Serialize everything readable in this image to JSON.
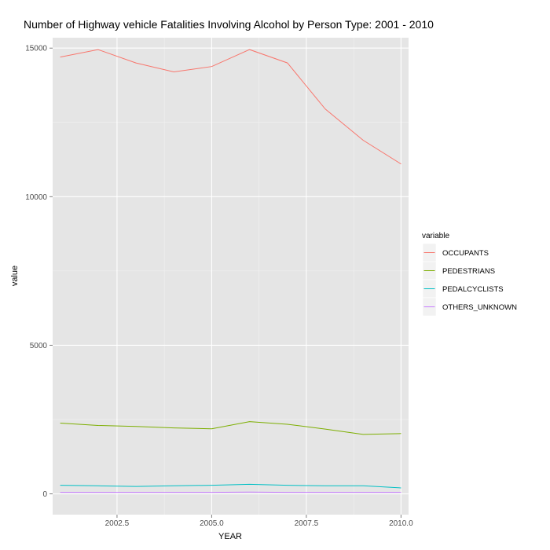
{
  "chart_data": {
    "type": "line",
    "title": "Number of Highway vehicle Fatalities Involving Alcohol by Person Type: 2001 - 2010",
    "xlabel": "YEAR",
    "ylabel": "value",
    "xlim": [
      2000.8,
      2010.2
    ],
    "ylim": [
      -700,
      15350
    ],
    "x_ticks": [
      2002.5,
      2005.0,
      2007.5,
      2010.0
    ],
    "x_tick_labels": [
      "2002.5",
      "2005.0",
      "2007.5",
      "2010.0"
    ],
    "y_ticks": [
      0,
      5000,
      10000,
      15000
    ],
    "y_tick_labels": [
      "0",
      "5000",
      "10000",
      "15000"
    ],
    "grid": true,
    "background": "#e5e5e5",
    "legend": {
      "title": "variable",
      "position": "right"
    },
    "x": [
      2001,
      2002,
      2003,
      2004,
      2005,
      2006,
      2007,
      2008,
      2009,
      2010
    ],
    "series": [
      {
        "name": "OCCUPANTS",
        "color": "#f8766d",
        "values": [
          14700,
          14950,
          14500,
          14200,
          14380,
          14950,
          14500,
          12950,
          11900,
          11100
        ]
      },
      {
        "name": "PEDESTRIANS",
        "color": "#7cae00",
        "values": [
          2380,
          2300,
          2270,
          2220,
          2190,
          2430,
          2340,
          2180,
          2000,
          2030
        ]
      },
      {
        "name": "PEDALCYCLISTS",
        "color": "#00bfc4",
        "values": [
          290,
          270,
          250,
          270,
          290,
          320,
          290,
          270,
          270,
          200
        ]
      },
      {
        "name": "OTHERS_UNKNOWN",
        "color": "#c77cff",
        "values": [
          50,
          50,
          50,
          50,
          50,
          60,
          50,
          50,
          50,
          50
        ]
      }
    ]
  }
}
